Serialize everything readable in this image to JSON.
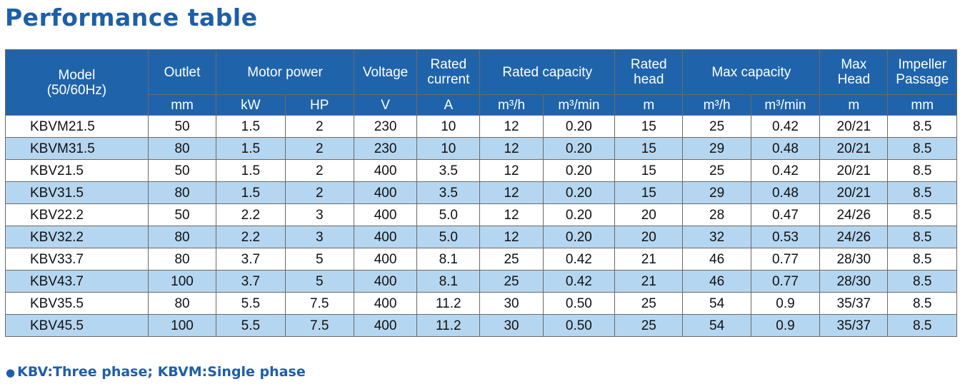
{
  "title": "Performance table",
  "header": {
    "model": "Model",
    "model_sub": "(50/60Hz)",
    "outlet": "Outlet",
    "motor_power": "Motor power",
    "voltage": "Voltage",
    "rated_current_1": "Rated",
    "rated_current_2": "current",
    "rated_capacity": "Rated capacity",
    "rated_head_1": "Rated",
    "rated_head_2": "head",
    "max_capacity": "Max capacity",
    "max_head_1": "Max",
    "max_head_2": "Head",
    "impeller_1": "Impeller",
    "impeller_2": "Passage"
  },
  "units": [
    "mm",
    "kW",
    "HP",
    "V",
    "A",
    "m³/h",
    "m³/min",
    "m",
    "m³/h",
    "m³/min",
    "m",
    "mm"
  ],
  "rows": [
    [
      "KBVM21.5",
      "50",
      "1.5",
      "2",
      "230",
      "10",
      "12",
      "0.20",
      "15",
      "25",
      "0.42",
      "20/21",
      "8.5"
    ],
    [
      "KBVM31.5",
      "80",
      "1.5",
      "2",
      "230",
      "10",
      "12",
      "0.20",
      "15",
      "29",
      "0.48",
      "20/21",
      "8.5"
    ],
    [
      "KBV21.5",
      "50",
      "1.5",
      "2",
      "400",
      "3.5",
      "12",
      "0.20",
      "15",
      "25",
      "0.42",
      "20/21",
      "8.5"
    ],
    [
      "KBV31.5",
      "80",
      "1.5",
      "2",
      "400",
      "3.5",
      "12",
      "0.20",
      "15",
      "29",
      "0.48",
      "20/21",
      "8.5"
    ],
    [
      "KBV22.2",
      "50",
      "2.2",
      "3",
      "400",
      "5.0",
      "12",
      "0.20",
      "20",
      "28",
      "0.47",
      "24/26",
      "8.5"
    ],
    [
      "KBV32.2",
      "80",
      "2.2",
      "3",
      "400",
      "5.0",
      "12",
      "0.20",
      "20",
      "32",
      "0.53",
      "24/26",
      "8.5"
    ],
    [
      "KBV33.7",
      "80",
      "3.7",
      "5",
      "400",
      "8.1",
      "25",
      "0.42",
      "21",
      "46",
      "0.77",
      "28/30",
      "8.5"
    ],
    [
      "KBV43.7",
      "100",
      "3.7",
      "5",
      "400",
      "8.1",
      "25",
      "0.42",
      "21",
      "46",
      "0.77",
      "28/30",
      "8.5"
    ],
    [
      "KBV35.5",
      "80",
      "5.5",
      "7.5",
      "400",
      "11.2",
      "30",
      "0.50",
      "25",
      "54",
      "0.9",
      "35/37",
      "8.5"
    ],
    [
      "KBV45.5",
      "100",
      "5.5",
      "7.5",
      "400",
      "11.2",
      "30",
      "0.50",
      "25",
      "54",
      "0.9",
      "35/37",
      "8.5"
    ]
  ],
  "note": {
    "bullet": "●",
    "text": "KBV:Three phase; KBVM:Single phase"
  },
  "colors": {
    "header_bg": "#1f64ab",
    "stripe_bg": "#b5d6f0",
    "title_color": "#1d5fa8"
  }
}
